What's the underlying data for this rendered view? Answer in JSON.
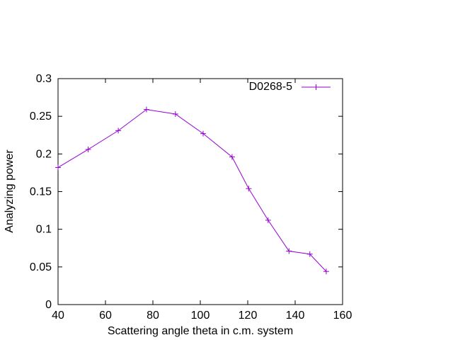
{
  "chart_data": {
    "type": "line",
    "xlabel": "Scattering angle theta in c.m. system",
    "ylabel": "Analyzing power",
    "xlim": [
      40,
      160
    ],
    "ylim": [
      0,
      0.3
    ],
    "x_ticks": [
      "40",
      "60",
      "80",
      "100",
      "120",
      "140",
      "160"
    ],
    "y_ticks": [
      "0",
      "0.05",
      "0.1",
      "0.15",
      "0.2",
      "0.25",
      "0.3"
    ],
    "grid": false,
    "legend_position": "top-right",
    "series": [
      {
        "name": "D0268-5",
        "color": "#9400d3",
        "marker": "plus",
        "x": [
          40,
          52.7,
          65.4,
          77.3,
          89.5,
          101.2,
          113.4,
          120.4,
          128.6,
          137.4,
          146.2,
          153.1
        ],
        "y": [
          0.182,
          0.206,
          0.231,
          0.259,
          0.253,
          0.227,
          0.196,
          0.154,
          0.112,
          0.071,
          0.067,
          0.044
        ]
      }
    ]
  }
}
